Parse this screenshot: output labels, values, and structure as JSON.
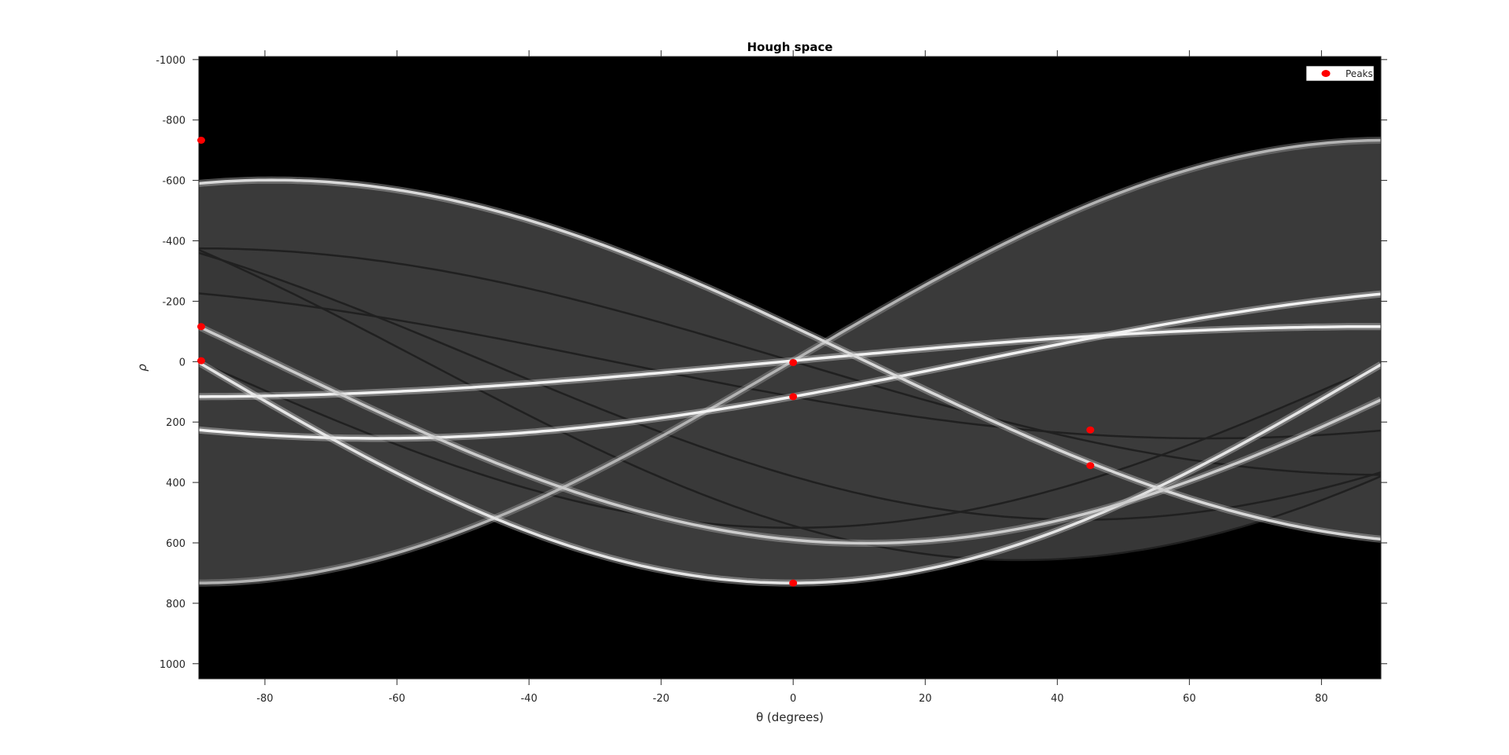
{
  "chart_data": {
    "type": "heatmap",
    "title": "Hough space",
    "xlabel": "θ (degrees)",
    "ylabel": "ρ",
    "xlim": [
      -90,
      89
    ],
    "ylim": [
      -1010,
      1050
    ],
    "y_reversed": true,
    "x_ticks": [
      -80,
      -60,
      -40,
      -20,
      0,
      20,
      40,
      60,
      80
    ],
    "y_ticks": [
      -1000,
      -800,
      -600,
      -400,
      -200,
      0,
      200,
      400,
      600,
      800,
      1000
    ],
    "colormap": "gray",
    "background_color": "#000000",
    "band_curves": [
      {
        "a": 733,
        "b": -3,
        "level": 0.25
      },
      {
        "a": -1,
        "b": 375,
        "level": 0.22
      },
      {
        "a": 543,
        "b": 370,
        "level": 0.2
      },
      {
        "a": 550,
        "b": 0,
        "level": 0.2
      },
      {
        "a": 380,
        "b": 360,
        "level": 0.22
      },
      {
        "a": 116,
        "b": 226,
        "level": 0.25
      }
    ],
    "bright_curves": [
      {
        "a": -3,
        "b": -733,
        "level": 0.7
      },
      {
        "a": 116,
        "b": -226,
        "level": 0.95
      },
      {
        "a": -3,
        "b": -116,
        "level": 0.95
      },
      {
        "a": 733,
        "b": -3,
        "level": 0.9
      },
      {
        "a": -116,
        "b": 590,
        "level": 0.85
      },
      {
        "a": 590,
        "b": 116,
        "level": 0.8
      }
    ],
    "legend": {
      "entries": [
        "Peaks"
      ],
      "location": "top-right"
    },
    "series": [
      {
        "name": "Peaks",
        "color": "#ff0000",
        "marker": "filled-circle",
        "points": [
          {
            "theta": -90,
            "rho": -733
          },
          {
            "theta": -90,
            "rho": -116
          },
          {
            "theta": -90,
            "rho": -3
          },
          {
            "theta": 0,
            "rho": 3
          },
          {
            "theta": 0,
            "rho": 116
          },
          {
            "theta": 0,
            "rho": 733
          },
          {
            "theta": 45,
            "rho": 226
          },
          {
            "theta": 45,
            "rho": 344
          }
        ]
      }
    ]
  }
}
